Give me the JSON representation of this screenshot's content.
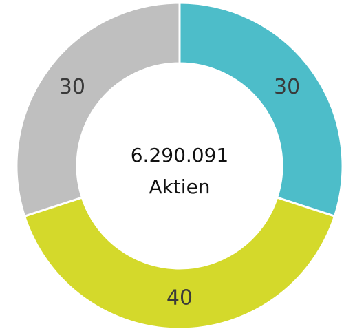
{
  "chart_data": {
    "type": "donut",
    "values": [
      30,
      40,
      30
    ],
    "colors": [
      "#4dbdc9",
      "#d4d92b",
      "#bfbfbf"
    ],
    "center_text": [
      "6.290.091",
      "Aktien"
    ]
  }
}
